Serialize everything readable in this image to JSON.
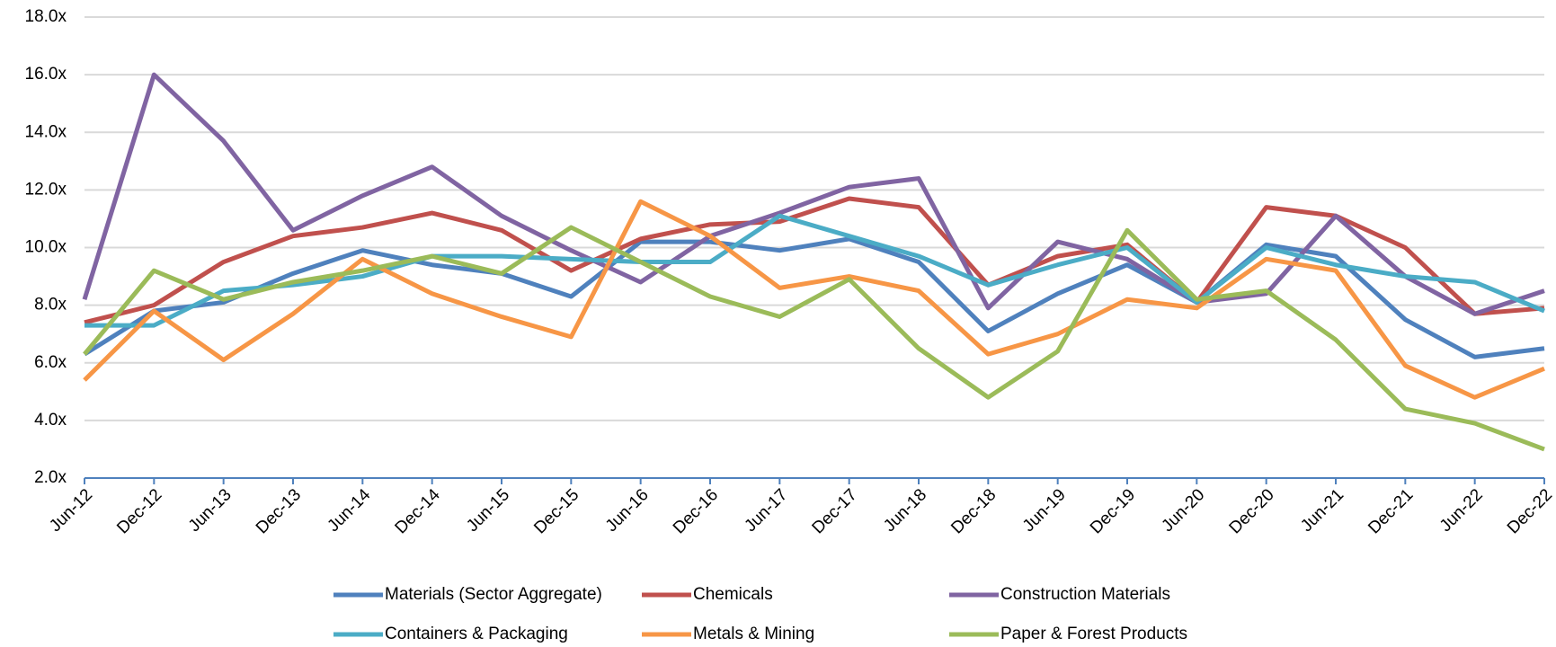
{
  "chart_data": {
    "type": "line",
    "categories": [
      "Jun-12",
      "Dec-12",
      "Jun-13",
      "Dec-13",
      "Jun-14",
      "Dec-14",
      "Jun-15",
      "Dec-15",
      "Jun-16",
      "Dec-16",
      "Jun-17",
      "Dec-17",
      "Jun-18",
      "Dec-18",
      "Jun-19",
      "Dec-19",
      "Jun-20",
      "Dec-20",
      "Jun-21",
      "Dec-21",
      "Jun-22",
      "Dec-22"
    ],
    "series": [
      {
        "name": "Materials (Sector Aggregate)",
        "color": "#4f81bd",
        "values": [
          6.3,
          7.8,
          8.1,
          9.1,
          9.9,
          9.4,
          9.1,
          8.3,
          10.2,
          10.2,
          9.9,
          10.3,
          9.5,
          7.1,
          8.4,
          9.4,
          8.1,
          10.1,
          9.7,
          7.5,
          6.2,
          6.5
        ]
      },
      {
        "name": "Chemicals",
        "color": "#c0504d",
        "values": [
          7.4,
          8.0,
          9.5,
          10.4,
          10.7,
          11.2,
          10.6,
          9.2,
          10.3,
          10.8,
          10.9,
          11.7,
          11.4,
          8.7,
          9.7,
          10.1,
          8.1,
          11.4,
          11.1,
          10.0,
          7.7,
          7.9
        ]
      },
      {
        "name": "Construction Materials",
        "color": "#8064a2",
        "values": [
          8.2,
          16.0,
          13.7,
          10.6,
          11.8,
          12.8,
          11.1,
          9.9,
          8.8,
          10.4,
          11.2,
          12.1,
          12.4,
          7.9,
          10.2,
          9.6,
          8.1,
          8.4,
          11.1,
          9.0,
          7.7,
          8.5
        ]
      },
      {
        "name": "Containers & Packaging",
        "color": "#4bacc6",
        "values": [
          7.3,
          7.3,
          8.5,
          8.7,
          9.0,
          9.7,
          9.7,
          9.6,
          9.5,
          9.5,
          11.1,
          10.4,
          9.7,
          8.7,
          9.4,
          10.0,
          8.1,
          10.0,
          9.4,
          9.0,
          8.8,
          7.8
        ]
      },
      {
        "name": "Metals & Mining",
        "color": "#f79646",
        "values": [
          5.4,
          7.8,
          6.1,
          7.7,
          9.6,
          8.4,
          7.6,
          6.9,
          11.6,
          10.4,
          8.6,
          9.0,
          8.5,
          6.3,
          7.0,
          8.2,
          7.9,
          9.6,
          9.2,
          5.9,
          4.8,
          5.8
        ]
      },
      {
        "name": "Paper & Forest Products",
        "color": "#9bbb59",
        "values": [
          6.3,
          9.2,
          8.2,
          8.8,
          9.2,
          9.7,
          9.1,
          10.7,
          9.5,
          8.3,
          7.6,
          8.9,
          6.5,
          4.8,
          6.4,
          10.6,
          8.2,
          8.5,
          6.8,
          4.4,
          3.9,
          3.0
        ]
      }
    ],
    "ylim": [
      2,
      18
    ],
    "yticks": [
      {
        "value": 2,
        "label": "2.0x"
      },
      {
        "value": 4,
        "label": "4.0x"
      },
      {
        "value": 6,
        "label": "6.0x"
      },
      {
        "value": 8,
        "label": "8.0x"
      },
      {
        "value": 10,
        "label": "10.0x"
      },
      {
        "value": 12,
        "label": "12.0x"
      },
      {
        "value": 14,
        "label": "14.0x"
      },
      {
        "value": 16,
        "label": "16.0x"
      },
      {
        "value": 18,
        "label": "18.0x"
      }
    ],
    "grid": true
  }
}
